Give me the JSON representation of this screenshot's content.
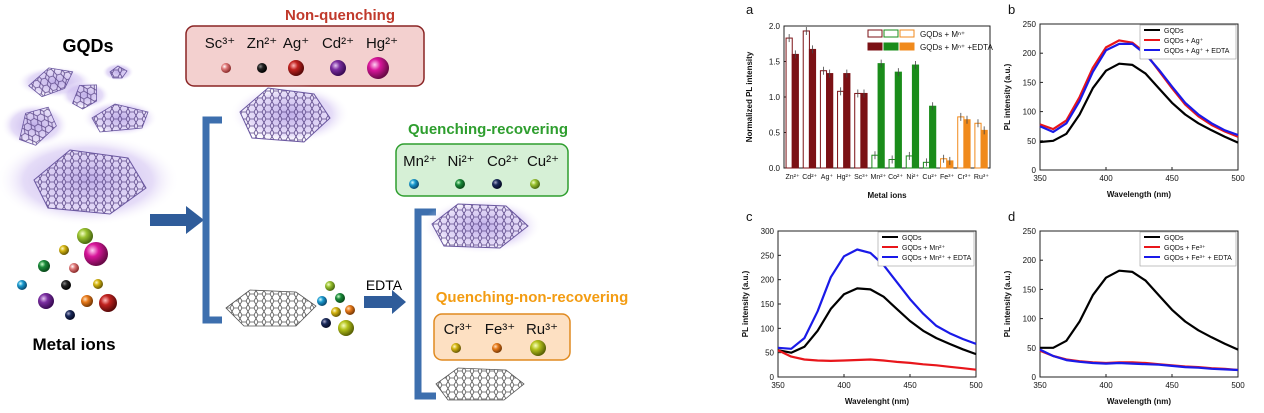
{
  "scheme": {
    "gqds_label": "GQDs",
    "metal_ions_label": "Metal ions",
    "edta_label": "EDTA",
    "groups": [
      {
        "title": "Non-quenching",
        "color": "#c0392b",
        "ions": [
          "Sc³⁺",
          "Zn²⁺",
          "Ag⁺",
          "Cd²⁺",
          "Hg²⁺"
        ]
      },
      {
        "title": "Quenching-recovering",
        "color": "#2e9e2e",
        "ions": [
          "Mn²⁺",
          "Ni²⁺",
          "Co²⁺",
          "Cu²⁺"
        ]
      },
      {
        "title": "Quenching-non-recovering",
        "color": "#f39c12",
        "ions": [
          "Cr³⁺",
          "Fe³⁺",
          "Ru³⁺"
        ]
      }
    ]
  },
  "chart_data": [
    {
      "panel": "a",
      "type": "bar",
      "xlabel": "Metal ions",
      "ylabel": "Normalized PL intensity",
      "ylim": [
        0,
        2.0
      ],
      "yticks": [
        0.0,
        0.5,
        1.0,
        1.5,
        2.0
      ],
      "categories": [
        "Zn²⁺",
        "Cd²⁺",
        "Ag⁺",
        "Hg²⁺",
        "Sc³⁺",
        "Mn²⁺",
        "Co²⁺",
        "Ni²⁺",
        "Cu²⁺",
        "Fe³⁺",
        "Cr³⁺",
        "Ru³⁺"
      ],
      "legend": {
        "row1": "GQDs + Mⁿ⁺",
        "row2": "GQDs + Mⁿ⁺ +EDTA",
        "placement": "top-right"
      },
      "series": [
        {
          "values": [
            1.83,
            1.93,
            1.37,
            1.08,
            1.05,
            0.18,
            0.12,
            0.17,
            0.08,
            0.13,
            0.72,
            0.63
          ]
        },
        {
          "values": [
            1.6,
            1.67,
            1.33,
            1.33,
            1.05,
            1.47,
            1.35,
            1.45,
            0.87,
            0.1,
            0.68,
            0.53
          ]
        }
      ],
      "groups_colors": {
        "non_quenching": "#7b1115",
        "recovering": "#1a8c1a",
        "non_recovering": "#f08a1c"
      },
      "group_sizes": [
        5,
        4,
        3
      ]
    },
    {
      "panel": "b",
      "type": "line",
      "xlabel": "Wavelength (nm)",
      "ylabel": "PL intensity (a.u.)",
      "xlim": [
        350,
        500
      ],
      "ylim": [
        0,
        250
      ],
      "xticks": [
        350,
        400,
        450,
        500
      ],
      "yticks": [
        0,
        50,
        100,
        150,
        200,
        250
      ],
      "series": [
        {
          "name": "GQDs",
          "color": "#000000",
          "x": [
            350,
            360,
            370,
            380,
            390,
            400,
            410,
            420,
            430,
            440,
            450,
            460,
            470,
            480,
            490,
            500
          ],
          "y": [
            48,
            50,
            62,
            95,
            140,
            170,
            182,
            180,
            165,
            140,
            115,
            95,
            80,
            68,
            57,
            47
          ]
        },
        {
          "name": "GQDs + Ag⁺",
          "color": "#e8161b",
          "x": [
            350,
            360,
            370,
            380,
            390,
            400,
            410,
            420,
            430,
            440,
            450,
            460,
            470,
            480,
            490,
            500
          ],
          "y": [
            78,
            70,
            85,
            125,
            175,
            210,
            222,
            218,
            200,
            170,
            140,
            112,
            92,
            77,
            66,
            57
          ]
        },
        {
          "name": "GQDs + Ag⁺ + EDTA",
          "color": "#1a1ae8",
          "x": [
            350,
            360,
            370,
            380,
            390,
            400,
            410,
            420,
            430,
            440,
            450,
            460,
            470,
            480,
            490,
            500
          ],
          "y": [
            75,
            65,
            80,
            118,
            168,
            205,
            216,
            216,
            198,
            172,
            143,
            115,
            95,
            80,
            68,
            60
          ]
        }
      ]
    },
    {
      "panel": "c",
      "type": "line",
      "xlabel": "Wavelenght (nm)",
      "ylabel": "PL intensity (a.u.)",
      "xlim": [
        350,
        500
      ],
      "ylim": [
        0,
        300
      ],
      "xticks": [
        350,
        400,
        450,
        500
      ],
      "yticks": [
        0,
        50,
        100,
        150,
        200,
        250,
        300
      ],
      "series": [
        {
          "name": "GQDs",
          "color": "#000000",
          "x": [
            350,
            360,
            370,
            380,
            390,
            400,
            410,
            420,
            430,
            440,
            450,
            460,
            470,
            480,
            490,
            500
          ],
          "y": [
            55,
            50,
            62,
            95,
            140,
            170,
            182,
            180,
            165,
            140,
            115,
            95,
            80,
            68,
            57,
            47
          ]
        },
        {
          "name": "GQDs + Mn²⁺",
          "color": "#e8161b",
          "x": [
            350,
            360,
            370,
            380,
            390,
            400,
            410,
            420,
            430,
            440,
            450,
            460,
            470,
            480,
            490,
            500
          ],
          "y": [
            55,
            42,
            36,
            34,
            33,
            34,
            35,
            36,
            34,
            31,
            29,
            26,
            24,
            21,
            18,
            15
          ]
        },
        {
          "name": "GQDs + Mn²⁺ + EDTA",
          "color": "#1a1ae8",
          "x": [
            350,
            360,
            370,
            380,
            390,
            400,
            410,
            420,
            430,
            440,
            450,
            460,
            470,
            480,
            490,
            500
          ],
          "y": [
            60,
            58,
            80,
            135,
            205,
            248,
            262,
            255,
            230,
            195,
            160,
            130,
            105,
            90,
            78,
            68
          ]
        }
      ]
    },
    {
      "panel": "d",
      "type": "line",
      "xlabel": "Wavelength (nm)",
      "ylabel": "PL intensity (a.u.)",
      "xlim": [
        350,
        500
      ],
      "ylim": [
        0,
        250
      ],
      "xticks": [
        350,
        400,
        450,
        500
      ],
      "yticks": [
        0,
        50,
        100,
        150,
        200,
        250
      ],
      "series": [
        {
          "name": "GQDs",
          "color": "#000000",
          "x": [
            350,
            360,
            370,
            380,
            390,
            400,
            410,
            420,
            430,
            440,
            450,
            460,
            470,
            480,
            490,
            500
          ],
          "y": [
            50,
            50,
            62,
            95,
            140,
            170,
            182,
            180,
            165,
            140,
            115,
            95,
            80,
            68,
            57,
            47
          ]
        },
        {
          "name": "GQDs + Fe³⁺",
          "color": "#e8161b",
          "x": [
            350,
            360,
            370,
            380,
            390,
            400,
            410,
            420,
            430,
            440,
            450,
            460,
            470,
            480,
            490,
            500
          ],
          "y": [
            45,
            36,
            30,
            27,
            25,
            24,
            25,
            25,
            24,
            22,
            20,
            18,
            17,
            15,
            14,
            12
          ]
        },
        {
          "name": "GQDs + Fe³⁺ + EDTA",
          "color": "#1a1ae8",
          "x": [
            350,
            360,
            370,
            380,
            390,
            400,
            410,
            420,
            430,
            440,
            450,
            460,
            470,
            480,
            490,
            500
          ],
          "y": [
            47,
            36,
            29,
            26,
            24,
            23,
            24,
            23,
            22,
            21,
            19,
            17,
            16,
            14,
            13,
            12
          ]
        }
      ]
    }
  ]
}
